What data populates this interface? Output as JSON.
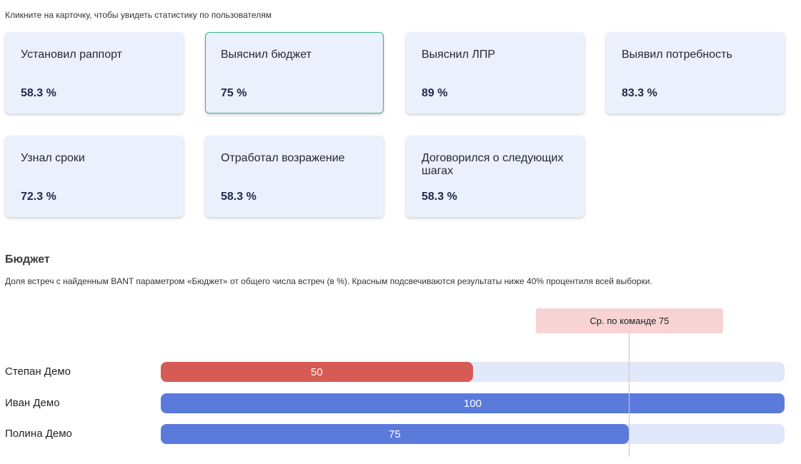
{
  "hint": "Кликните на карточку, чтобы увидеть статистику по пользователям",
  "cards": [
    {
      "title": "Установил раппорт",
      "value": "58.3 %",
      "active": false
    },
    {
      "title": "Выяснил бюджет",
      "value": "75 %",
      "active": true
    },
    {
      "title": "Выяснил ЛПР",
      "value": "89 %",
      "active": false
    },
    {
      "title": "Выявил потребность",
      "value": "83.3 %",
      "active": false
    },
    {
      "title": "Узнал сроки",
      "value": "72.3 %",
      "active": false
    },
    {
      "title": "Отработал возражение",
      "value": "58.3 %",
      "active": false
    },
    {
      "title": "Договорился о следующих шагах",
      "value": "58.3 %",
      "active": false
    }
  ],
  "section": {
    "title": "Бюджет",
    "description": "Доля встреч с найденным BANT параметром «Бюджет» от общего числа встреч (в %). Красным подсвечиваются результаты ниже 40% процентиля всей выборки."
  },
  "colors": {
    "low": "#d65b55",
    "normal": "#5b7bdc",
    "track": "#e1e8fa",
    "active_border": "#3bb583"
  },
  "chart_data": {
    "type": "bar",
    "orientation": "horizontal",
    "categories": [
      "Степан Демо",
      "Иван Демо",
      "Полина Демо"
    ],
    "values": [
      50,
      100,
      75
    ],
    "highlight": [
      "low",
      "normal",
      "normal"
    ],
    "xlim": [
      0,
      100
    ],
    "average": {
      "label": "Ср. по команде 75",
      "value": 75
    }
  }
}
